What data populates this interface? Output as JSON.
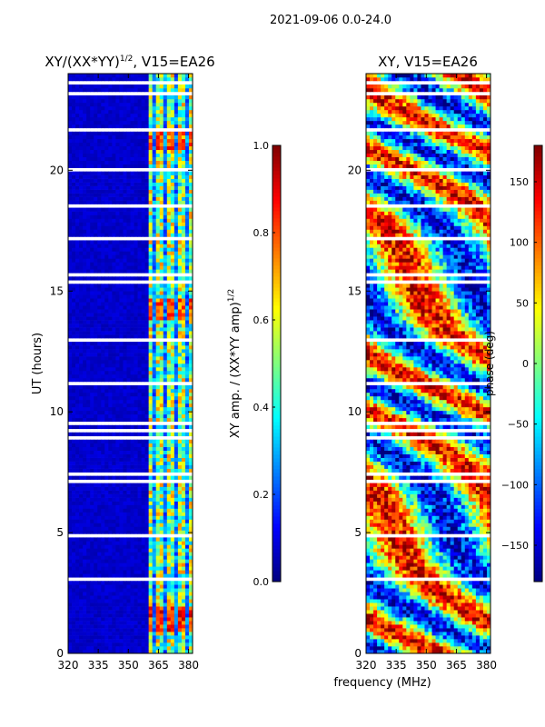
{
  "suptitle": "2021-09-06 0.0-24.0",
  "xlabel_shared": "frequency (MHz)",
  "colormap": [
    "#00007f",
    "#0000ff",
    "#007fff",
    "#00ffff",
    "#7fff7f",
    "#ffff00",
    "#ff7f00",
    "#ff0000",
    "#7f0000"
  ],
  "gap_color": "#ffffff",
  "chart_data": [
    {
      "type": "heatmap",
      "title_main": "XY/(XX*YY)",
      "title_sup": "1/2",
      "title_tail": ", V15=EA26",
      "xlabel": "",
      "ylabel": "UT (hours)",
      "xlim": [
        320,
        382
      ],
      "ylim": [
        0,
        24
      ],
      "xticks": [
        320,
        335,
        350,
        365,
        380
      ],
      "yticks": [
        0,
        5,
        10,
        15,
        20
      ],
      "dominant_value": 0.05,
      "bright_band_mhz": [
        360,
        382
      ],
      "hot_patches": [
        {
          "t0": 0.9,
          "t1": 1.9,
          "value": 0.95
        },
        {
          "t0": 13.8,
          "t1": 14.7,
          "value": 0.9
        },
        {
          "t0": 20.9,
          "t1": 21.8,
          "value": 0.9
        }
      ],
      "colorbar": {
        "label_main": "XY amp. / (XX*YY amp)",
        "label_sup": "1/2",
        "range": [
          0.0,
          1.0
        ],
        "ticks": [
          "0.0",
          "0.2",
          "0.4",
          "0.6",
          "0.8",
          "1.0"
        ]
      }
    },
    {
      "type": "heatmap",
      "title": "XY, V15=EA26",
      "xlabel": "",
      "ylabel": "",
      "xlim": [
        320,
        382
      ],
      "ylim": [
        0,
        24
      ],
      "xticks": [
        320,
        335,
        350,
        365,
        380
      ],
      "yticks": [
        0,
        5,
        10,
        15,
        20
      ],
      "colorbar": {
        "label": "phase (deg)",
        "range": [
          -180,
          180
        ],
        "ticks": [
          "−150",
          "−100",
          "−50",
          "0",
          "50",
          "100",
          "150"
        ],
        "tick_values": [
          -150,
          -100,
          -50,
          0,
          50,
          100,
          150
        ]
      }
    }
  ]
}
